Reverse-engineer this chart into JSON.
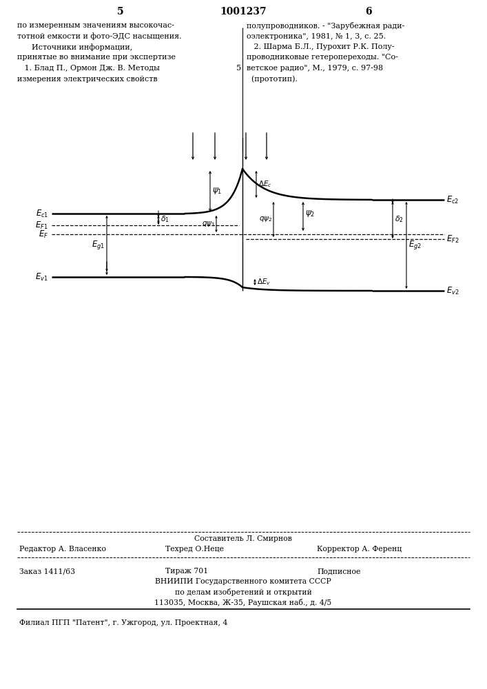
{
  "page_number_left": "5",
  "page_number_center": "1001237",
  "page_number_right": "6",
  "left_column_text": [
    "по измеренным значениям высокочас-",
    "тотной емкости и фото-ЭДС насыщения.",
    "      Источники информации,",
    "принятые во внимание при экспертизе",
    "   1. Блад П., Ормон Дж. В. Методы",
    "измерения электрических свойств"
  ],
  "right_column_text": [
    "полупроводников. - \"Зарубежная ради-",
    "оэлектроника\", 1981, № 1, 3, с. 25.",
    "   2. Шарма Б.Л., Пурохит Р.К. Полу-",
    "проводниковые гетеропереходы. \"Со-",
    "ветское радио\", М., 1979, с. 97-98",
    "  (прототип)."
  ],
  "right_col_number": "5",
  "footer_line1_center": "Составитель Л. Смирнов",
  "footer_line1_left": "Редактор А. Власенко",
  "footer_line2_center": "Техред О.Неце",
  "footer_line2_right": "Корректор А. Ференц",
  "footer_order": "Заказ 1411/63",
  "footer_tirazh": "Тираж 701",
  "footer_podp": "Подписное",
  "footer_vniip1": "ВНИИПИ Государственного комитета СССР",
  "footer_vniip2": "по делам изобретений и открытий",
  "footer_vniip3": "113035, Москва, Ж-35, Раушская наб., д. 4/5",
  "footer_filial": "Филиал ПГП \"Патент\", г. Ужгород, ул. Проектная, 4"
}
